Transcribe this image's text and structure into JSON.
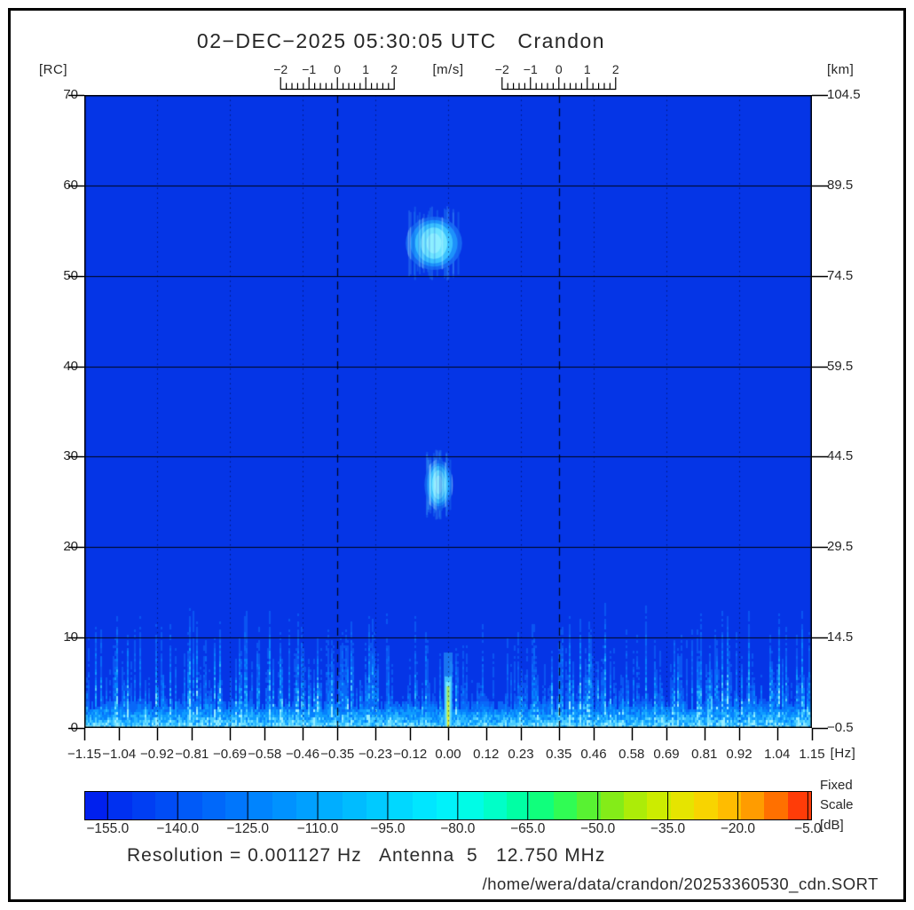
{
  "page": {
    "title": "02−DEC−2025 05:30:05 UTC   Crandon",
    "footer_resolution": "Resolution = 0.001127 Hz   Antenna  5   12.750 MHz",
    "footer_path": "/home/wera/data/crandon/20253360530_cdn.SORT"
  },
  "axes": {
    "left_unit": "[RC]",
    "right_unit": "[km]",
    "x_unit": "[Hz]",
    "velocity_unit": "[m/s]",
    "left_ticks": [
      "70",
      "60",
      "50",
      "40",
      "30",
      "20",
      "10",
      "0"
    ],
    "right_ticks": [
      "104.5",
      "89.5",
      "74.5",
      "59.5",
      "44.5",
      "29.5",
      "14.5",
      "−0.5"
    ],
    "x_ticks": [
      "−1.15",
      "−1.04",
      "−0.92",
      "−0.81",
      "−0.69",
      "−0.58",
      "−0.46",
      "−0.35",
      "−0.23",
      "−0.12",
      "0.00",
      "0.12",
      "0.23",
      "0.35",
      "0.46",
      "0.58",
      "0.69",
      "0.81",
      "0.92",
      "1.04",
      "1.15"
    ],
    "velocity_ticks": [
      "−2",
      "−1",
      "0",
      "1",
      "2"
    ]
  },
  "colorbar": {
    "note_line1": "Fixed",
    "note_line2": "Scale",
    "unit": "[dB]",
    "tick_labels": [
      "−155.0",
      "−140.0",
      "−125.0",
      "−110.0",
      "−95.0",
      "−80.0",
      "−65.0",
      "−50.0",
      "−35.0",
      "−20.0",
      "−5.0"
    ],
    "colors": [
      "#0020EE",
      "#0030F0",
      "#003EF3",
      "#004CF5",
      "#005AF8",
      "#0068FA",
      "#0076FC",
      "#0084FE",
      "#0092FF",
      "#00A0FF",
      "#00AEFF",
      "#00BCFF",
      "#00CAFF",
      "#00D8FF",
      "#00E6FF",
      "#00F2FA",
      "#00FCE6",
      "#00FFC8",
      "#00FFA4",
      "#10FF7C",
      "#30FC54",
      "#58F232",
      "#84EC18",
      "#ACEC08",
      "#CCEC00",
      "#E6E400",
      "#F8D400",
      "#FFBC00",
      "#FF9C00",
      "#FF7000",
      "#FF3C08"
    ]
  },
  "colors": {
    "plot_bg": "#0535E6",
    "echo_core": "#8EEFFF",
    "dc_spike_core": "#C8EE3A",
    "text": "#262626"
  },
  "chart_data": {
    "type": "heatmap",
    "title": "02−DEC−2025 05:30:05 UTC  Crandon",
    "station": "Crandon",
    "timestamp_utc": "02-DEC-2025 05:30:05",
    "xlabel": "[Hz]",
    "ylabel_left": "[RC]",
    "ylabel_right": "[km]",
    "velocity_axis_label": "[m/s]",
    "xlim": [
      -1.15,
      1.15
    ],
    "ylim_rc": [
      0,
      70
    ],
    "ylim_km": [
      -0.5,
      104.5
    ],
    "x_ticks_hz": [
      -1.15,
      -1.04,
      -0.92,
      -0.81,
      -0.69,
      -0.58,
      -0.46,
      -0.35,
      -0.23,
      -0.12,
      0.0,
      0.12,
      0.23,
      0.35,
      0.46,
      0.58,
      0.69,
      0.81,
      0.92,
      1.04,
      1.15
    ],
    "y_ticks_rc": [
      70,
      60,
      50,
      40,
      30,
      20,
      10,
      0
    ],
    "y_ticks_km": [
      104.5,
      89.5,
      74.5,
      59.5,
      44.5,
      29.5,
      14.5,
      -0.5
    ],
    "bragg_lines_hz": [
      -0.35,
      0.35
    ],
    "dotted_gridlines_hz": [
      -0.92,
      -0.69,
      -0.46,
      -0.23,
      0.0,
      0.23,
      0.46,
      0.69,
      0.92
    ],
    "velocity_ruler": {
      "range_ms": [
        -2,
        2
      ],
      "tick_values": [
        -2,
        -1,
        0,
        1,
        2
      ],
      "centers_hz": [
        -0.35,
        0.35
      ]
    },
    "colorbar": {
      "scale_mode": "Fixed Scale",
      "unit": "dB",
      "range_db": [
        -160,
        -5
      ],
      "ticks_db": [
        -155,
        -140,
        -125,
        -110,
        -95,
        -80,
        -65,
        -50,
        -35,
        -20,
        -5
      ]
    },
    "echoes": [
      {
        "center_hz": -0.045,
        "center_rc": 53.6,
        "width_hz": 0.17,
        "height_rc": 5.6,
        "peak_db": -95
      },
      {
        "center_hz": -0.03,
        "center_rc": 26.9,
        "width_hz": 0.085,
        "height_rc": 5.2,
        "peak_db": -100
      }
    ],
    "dc_spike": {
      "hz": 0.0,
      "rc_extent": [
        0,
        5
      ],
      "peak_db": -60
    },
    "noise_floor": {
      "rc_extent": [
        0,
        18
      ],
      "db_range": [
        -150,
        -110
      ]
    },
    "resolution_hz": 0.001127,
    "antenna": 5,
    "frequency_mhz": 12.75,
    "file": "/home/wera/data/crandon/20253360530_cdn.SORT"
  }
}
